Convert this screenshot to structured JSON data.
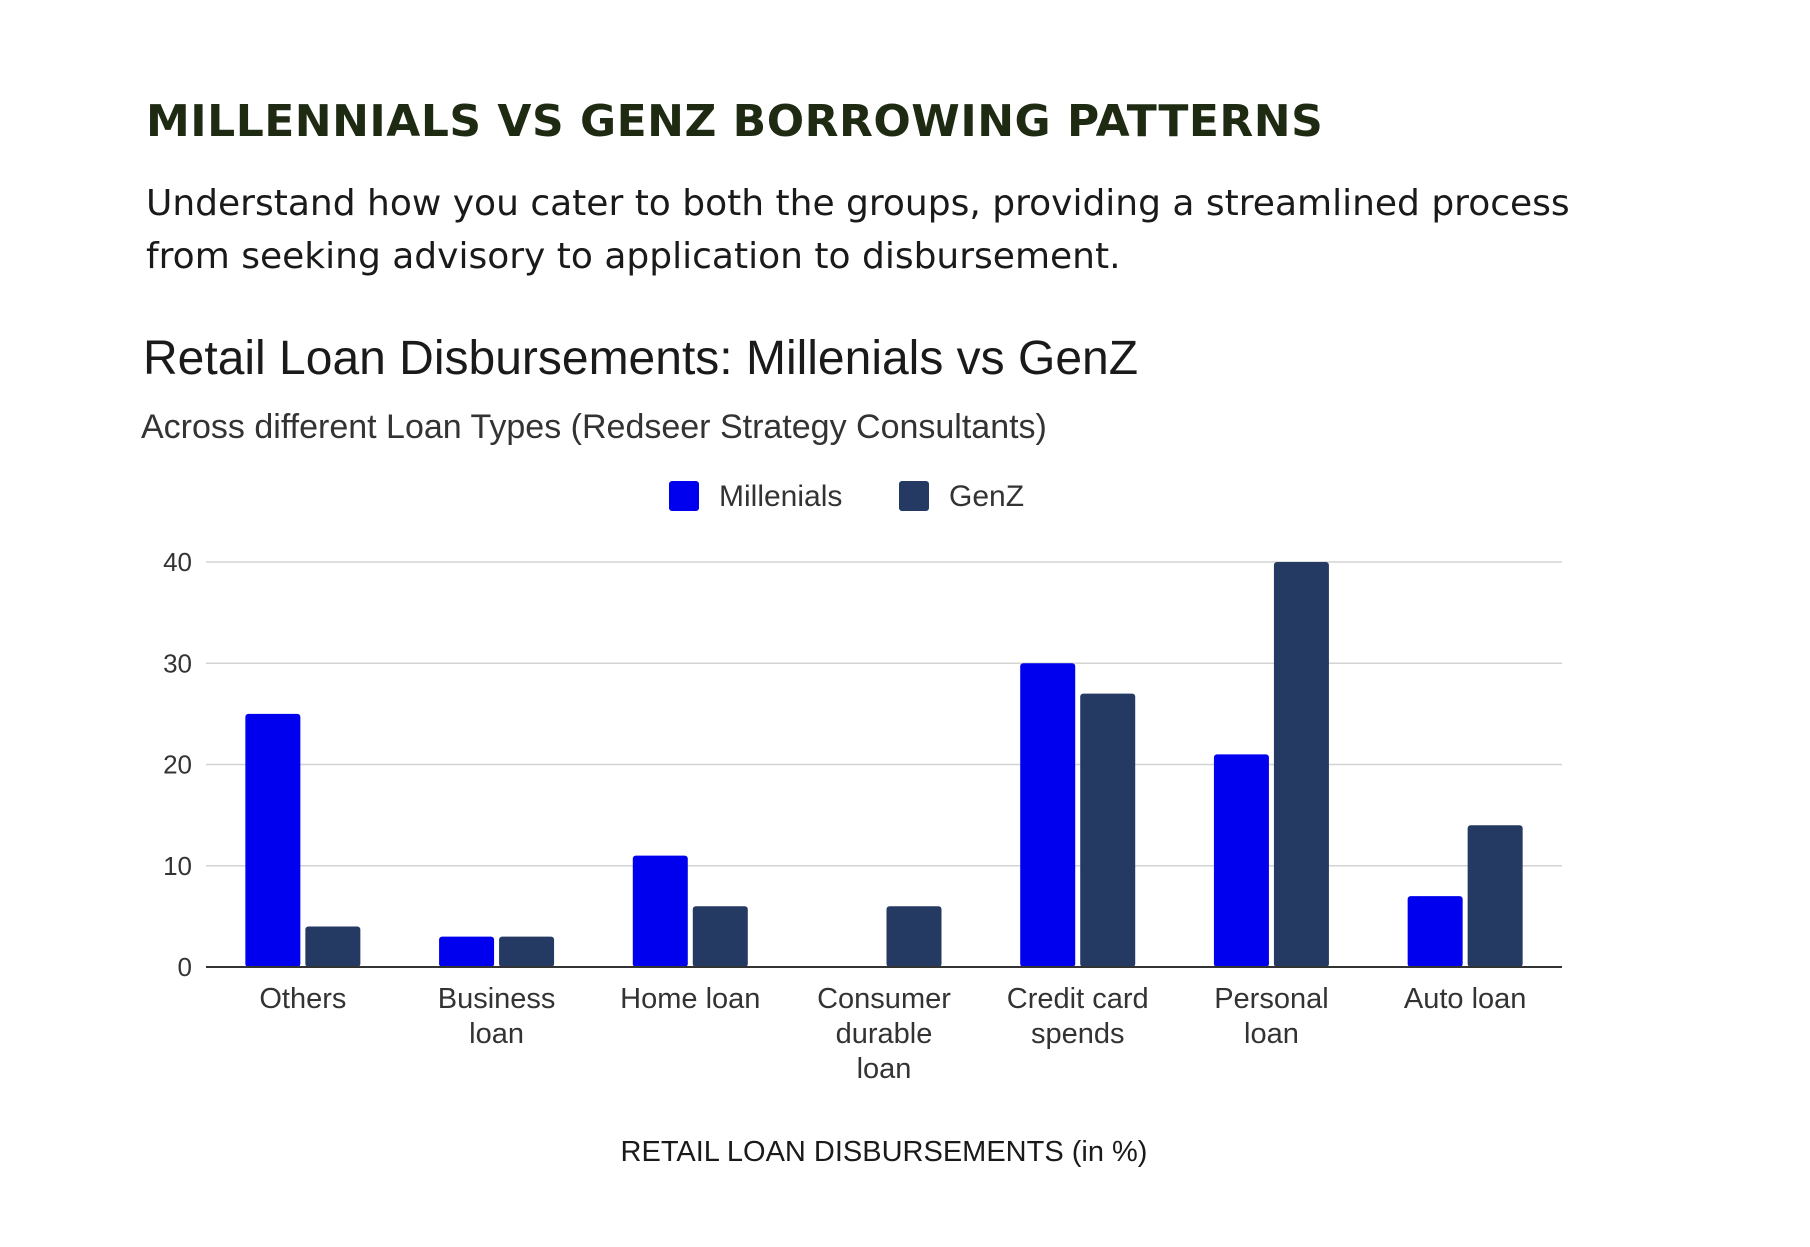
{
  "page": {
    "headline": "MILLENNIALS VS GENZ BORROWING PATTERNS",
    "intro": "Understand how you cater to both the groups, providing a streamlined process from seeking advisory to application to disbursement."
  },
  "chart_data": {
    "type": "bar",
    "title": "Retail Loan Disbursements: Millenials vs GenZ",
    "subtitle": "Across different Loan Types (Redseer Strategy Consultants)",
    "xlabel": "RETAIL LOAN DISBURSEMENTS (in %)",
    "ylabel": "",
    "categories": [
      [
        "Others"
      ],
      [
        "Business",
        "loan"
      ],
      [
        "Home loan"
      ],
      [
        "Consumer",
        "durable",
        "loan"
      ],
      [
        "Credit card",
        "spends"
      ],
      [
        "Personal",
        "loan"
      ],
      [
        "Auto loan"
      ]
    ],
    "series": [
      {
        "name": "Millenials",
        "color": "#0000ee",
        "values": [
          25,
          3,
          11,
          0,
          30,
          21,
          7
        ]
      },
      {
        "name": "GenZ",
        "color": "#243a63",
        "values": [
          4,
          3,
          6,
          6,
          27,
          40,
          14
        ]
      }
    ],
    "ylim": [
      0,
      40
    ],
    "yticks": [
      0,
      10,
      20,
      30,
      40
    ],
    "grid": true,
    "legend": "top-center"
  }
}
